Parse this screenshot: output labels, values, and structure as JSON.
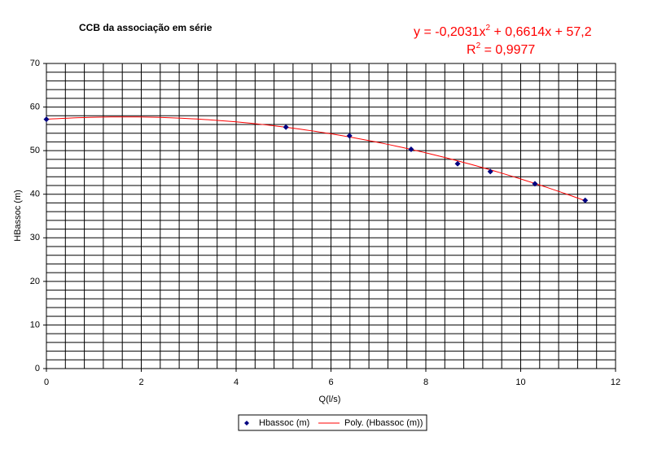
{
  "chart_data": {
    "type": "scatter",
    "title": "CCB da associação em série",
    "x_label": "Q(l/s)",
    "y_label": "HBassoc (m)",
    "series": [
      {
        "name": "Hbassoc (m)",
        "color": "#000080",
        "x": [
          0,
          5.05,
          6.39,
          7.69,
          8.67,
          9.36,
          10.3,
          11.36
        ],
        "values": [
          57.2,
          55.4,
          53.4,
          50.3,
          47.0,
          45.2,
          42.4,
          38.6
        ]
      }
    ],
    "trendline": {
      "name": "Poly. (Hbassoc (m))",
      "color": "#ff0000",
      "coefficients": [
        -0.2031,
        0.6614,
        57.2
      ],
      "equation": [
        "y = -0,2031x",
        "2",
        " + 0,6614x + 57,2"
      ],
      "r_squared": [
        "R",
        "2",
        " = 0,9977"
      ]
    },
    "xlim": [
      0,
      12
    ],
    "xticks": [
      0,
      2,
      4,
      6,
      8,
      10,
      12
    ],
    "ylim": [
      0,
      70
    ],
    "yticks": [
      0,
      10,
      20,
      30,
      40,
      50,
      60,
      70
    ],
    "grid": true,
    "legend": "bottom"
  }
}
